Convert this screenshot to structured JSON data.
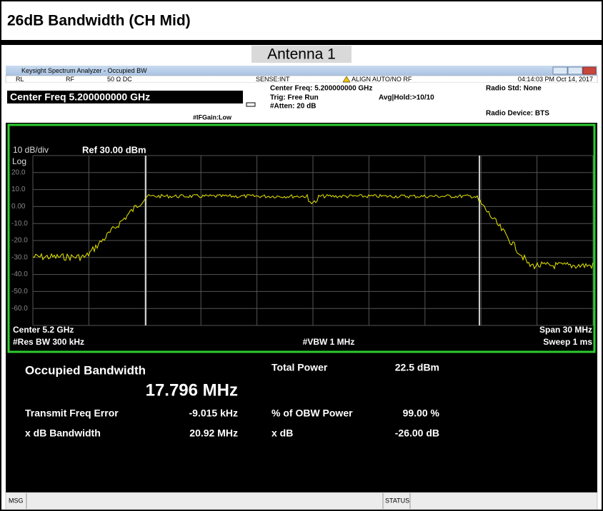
{
  "header": {
    "title": "26dB Bandwidth (CH Mid)",
    "subtitle": "Antenna 1"
  },
  "window": {
    "title": "Keysight Spectrum Analyzer - Occupied BW"
  },
  "status_row": {
    "rl": "RL",
    "rf": "RF",
    "impedance": "50 Ω  DC",
    "sense": "SENSE:INT",
    "align": "ALIGN AUTO/NO RF",
    "time": "04:14:03 PM Oct 14, 2017"
  },
  "settings": {
    "center_freq": "Center Freq 5.200000000 GHz",
    "if_gain": "#IFGain:Low",
    "center_freq_2": "Center Freq: 5.200000000 GHz",
    "trig": "Trig: Free Run",
    "atten": "#Atten: 20 dB",
    "avg_hold": "Avg|Hold:>10/10",
    "radio_std": "Radio Std: None",
    "radio_device": "Radio Device: BTS"
  },
  "graph": {
    "scale": "10 dB/div",
    "ref": "Ref 30.00 dBm",
    "log": "Log",
    "y_labels": [
      "20.0",
      "10.0",
      "0.00",
      "-10.0",
      "-20.0",
      "-30.0",
      "-40.0",
      "-50.0",
      "-60.0"
    ],
    "center": "Center  5.2 GHz",
    "res_bw": "#Res BW  300 kHz",
    "vbw": "#VBW  1 MHz",
    "span": "Span 30 MHz",
    "sweep": "Sweep  1 ms"
  },
  "results": {
    "obw_label": "Occupied Bandwidth",
    "obw_value": "17.796 MHz",
    "total_power_label": "Total Power",
    "total_power_value": "22.5 dBm",
    "tfe_label": "Transmit Freq Error",
    "tfe_value": "-9.015 kHz",
    "obw_power_label": "% of OBW Power",
    "obw_power_value": "99.00 %",
    "xdb_bw_label": "x dB Bandwidth",
    "xdb_bw_value": "20.92 MHz",
    "xdb_label": "x dB",
    "xdb_value": "-26.00 dB"
  },
  "footer": {
    "msg": "MSG",
    "status": "STATUS"
  }
}
